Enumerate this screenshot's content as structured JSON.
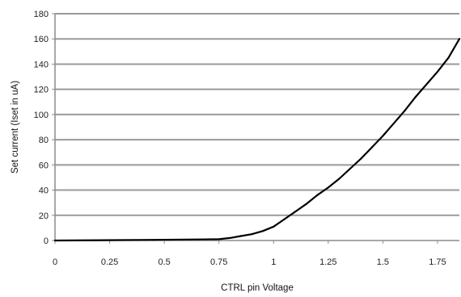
{
  "chart_data": {
    "type": "line",
    "title": "",
    "xlabel": "CTRL pin Voltage",
    "ylabel": "Set current (Iset in uA)",
    "xlim": [
      0,
      1.85
    ],
    "ylim": [
      0,
      180
    ],
    "x_ticks": [
      0,
      0.25,
      0.5,
      0.75,
      1,
      1.25,
      1.5,
      1.75
    ],
    "x_tick_labels": [
      "0",
      "0.25",
      "0.5",
      "0.75",
      "1",
      "1.25",
      "1.5",
      "1.75"
    ],
    "y_ticks": [
      0,
      20,
      40,
      60,
      80,
      100,
      120,
      140,
      160,
      180
    ],
    "y_tick_labels": [
      "0",
      "20",
      "40",
      "60",
      "80",
      "100",
      "120",
      "140",
      "160",
      "180"
    ],
    "grid": "horizontal",
    "legend": "none",
    "series": [
      {
        "color": "#000000",
        "x": [
          0.0,
          0.45,
          0.75,
          0.8,
          0.85,
          0.9,
          0.95,
          1.0,
          1.05,
          1.1,
          1.15,
          1.2,
          1.25,
          1.3,
          1.35,
          1.4,
          1.45,
          1.5,
          1.55,
          1.6,
          1.65,
          1.7,
          1.75,
          1.8,
          1.85
        ],
        "y": [
          0,
          0.5,
          1,
          2,
          3.5,
          5,
          7.5,
          11,
          17,
          23,
          29,
          36,
          42,
          49,
          57,
          65,
          74,
          83,
          93,
          103,
          114,
          124,
          134,
          145,
          160
        ]
      }
    ]
  }
}
